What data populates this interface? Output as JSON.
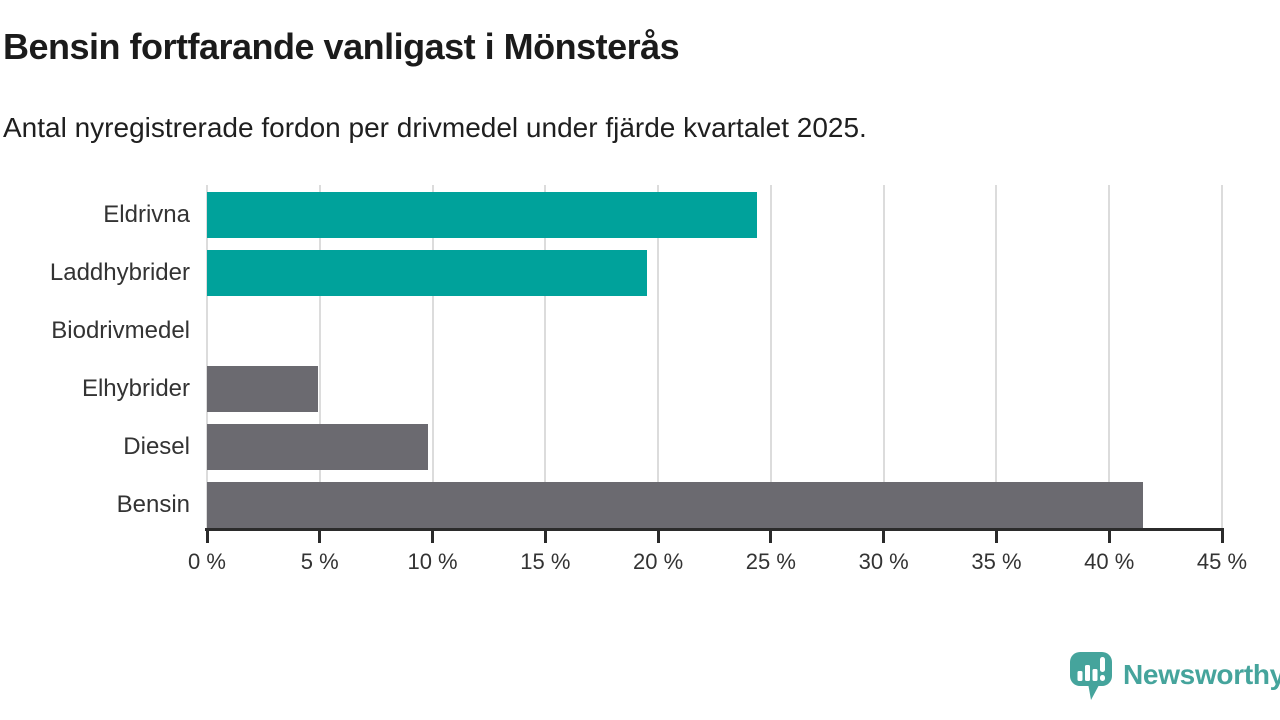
{
  "chart_data": {
    "type": "bar",
    "orientation": "horizontal",
    "title": "Bensin fortfarande vanligast i Mönsterås",
    "subtitle": "Antal nyregistrerade fordon per drivmedel under fjärde kvartalet 2025.",
    "categories": [
      "Eldrivna",
      "Laddhybrider",
      "Biodrivmedel",
      "Elhybrider",
      "Diesel",
      "Bensin"
    ],
    "values": [
      24.4,
      19.5,
      0,
      4.9,
      9.8,
      41.5
    ],
    "unit": "%",
    "highlighted": [
      true,
      true,
      false,
      false,
      false,
      false
    ],
    "xlim": [
      0,
      45
    ],
    "x_ticks": [
      0,
      5,
      10,
      15,
      20,
      25,
      30,
      35,
      40,
      45
    ],
    "x_tick_labels": [
      "0 %",
      "5 %",
      "10 %",
      "15 %",
      "20 %",
      "25 %",
      "30 %",
      "35 %",
      "40 %",
      "45 %"
    ],
    "grid": true,
    "legend": "none",
    "xlabel": "",
    "ylabel": ""
  },
  "colors": {
    "highlight": "#00a29b",
    "default": "#6b6a70",
    "grid": "#dcdcdc",
    "axis": "#2b2b2b",
    "label_text": "#333333",
    "logo": "#45a49c"
  },
  "footer": {
    "brand": "Newsworthy"
  }
}
